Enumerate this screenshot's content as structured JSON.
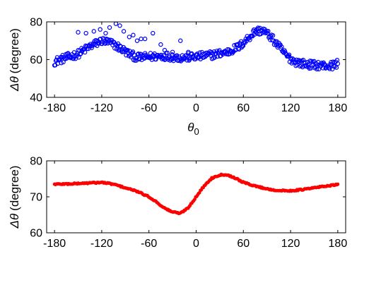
{
  "chart_data": [
    {
      "type": "scatter",
      "marker": "circle-open",
      "color": "#0000ff",
      "xlabel_symbol": "θ",
      "xlabel_subscript": "0",
      "ylabel_symbol": "Δθ",
      "ylabel_text": "(degree)",
      "xlim": [
        -190,
        190
      ],
      "ylim": [
        40,
        80
      ],
      "xticks": [
        "-180",
        "-120",
        "-60",
        "0",
        "60",
        "120",
        "180"
      ],
      "xtick_values": [
        -180,
        -120,
        -60,
        0,
        60,
        120,
        180
      ],
      "yticks": [
        "40",
        "60",
        "80"
      ],
      "ytick_values": [
        40,
        60,
        80
      ],
      "grid": false,
      "trend": [
        [
          -180,
          59
        ],
        [
          -165,
          61
        ],
        [
          -150,
          63
        ],
        [
          -135,
          67
        ],
        [
          -120,
          70
        ],
        [
          -110,
          69
        ],
        [
          -100,
          67
        ],
        [
          -85,
          63
        ],
        [
          -75,
          61
        ],
        [
          -60,
          61.5
        ],
        [
          -40,
          62
        ],
        [
          -20,
          61
        ],
        [
          0,
          61.5
        ],
        [
          20,
          62.5
        ],
        [
          40,
          64
        ],
        [
          55,
          67
        ],
        [
          65,
          71
        ],
        [
          75,
          75
        ],
        [
          85,
          75.5
        ],
        [
          95,
          72
        ],
        [
          105,
          67
        ],
        [
          115,
          62
        ],
        [
          125,
          59
        ],
        [
          140,
          57.5
        ],
        [
          155,
          57
        ],
        [
          170,
          56.5
        ],
        [
          180,
          58
        ]
      ],
      "outliers": [
        [
          -150,
          74.5
        ],
        [
          -140,
          74
        ],
        [
          -130,
          75
        ],
        [
          -122,
          76
        ],
        [
          -115,
          74
        ],
        [
          -110,
          77
        ],
        [
          -102,
          79
        ],
        [
          -97,
          78
        ],
        [
          -92,
          75
        ],
        [
          -85,
          72
        ],
        [
          -80,
          73
        ],
        [
          -75,
          70
        ],
        [
          -70,
          71
        ],
        [
          -65,
          71
        ],
        [
          -55,
          74
        ],
        [
          -45,
          68
        ],
        [
          -40,
          65
        ],
        [
          -30,
          64
        ],
        [
          -20,
          70
        ],
        [
          -10,
          64
        ]
      ]
    },
    {
      "type": "scatter",
      "marker": "circle-filled",
      "color": "#ff0000",
      "xlabel_symbol": "",
      "xlabel_subscript": "",
      "ylabel_symbol": "Δθ",
      "ylabel_text": "(degree)",
      "xlim": [
        -190,
        190
      ],
      "ylim": [
        60,
        80
      ],
      "xticks": [
        "-180",
        "-120",
        "-60",
        "0",
        "60",
        "120",
        "180"
      ],
      "xtick_values": [
        -180,
        -120,
        -60,
        0,
        60,
        120,
        180
      ],
      "yticks": [
        "60",
        "70",
        "80"
      ],
      "ytick_values": [
        60,
        70,
        80
      ],
      "grid": false,
      "trend": [
        [
          -180,
          73.5
        ],
        [
          -160,
          73.6
        ],
        [
          -140,
          73.8
        ],
        [
          -120,
          74
        ],
        [
          -105,
          73.5
        ],
        [
          -90,
          72.5
        ],
        [
          -75,
          71.5
        ],
        [
          -60,
          70
        ],
        [
          -50,
          68.5
        ],
        [
          -40,
          66.8
        ],
        [
          -30,
          65.8
        ],
        [
          -20,
          65.4
        ],
        [
          -10,
          67
        ],
        [
          0,
          70
        ],
        [
          10,
          73
        ],
        [
          20,
          75.2
        ],
        [
          30,
          76.1
        ],
        [
          38,
          76.2
        ],
        [
          50,
          75.2
        ],
        [
          60,
          74
        ],
        [
          75,
          73
        ],
        [
          90,
          72.2
        ],
        [
          105,
          71.7
        ],
        [
          120,
          71.7
        ],
        [
          135,
          72
        ],
        [
          150,
          72.5
        ],
        [
          165,
          73
        ],
        [
          180,
          73.4
        ]
      ]
    }
  ]
}
